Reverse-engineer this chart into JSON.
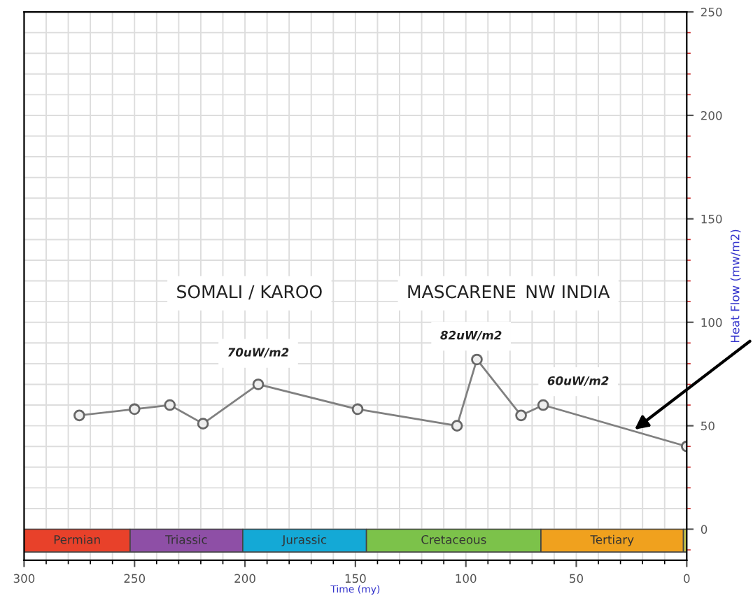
{
  "chart_data": {
    "type": "line",
    "xlabel": "Time (my)",
    "ylabel": "Heat Flow (mw/m2)",
    "x": [
      275,
      250,
      234,
      219,
      194,
      149,
      104,
      95,
      75,
      65,
      0
    ],
    "series": [
      {
        "color": "#808080",
        "values": [
          55,
          58,
          60,
          51,
          70,
          58,
          50,
          82,
          55,
          60,
          40
        ]
      }
    ],
    "marker": "circle",
    "line_style": "solid",
    "grid": true,
    "xlim": [
      300,
      0
    ],
    "xticks": [
      300,
      250,
      200,
      150,
      100,
      50,
      0
    ],
    "ylim": [
      -15,
      250
    ],
    "yticks": [
      0,
      50,
      100,
      150,
      200,
      250
    ],
    "bands": [
      {
        "axis": "x",
        "from": 300,
        "to": 252,
        "label": "Permian",
        "color": "#e8412a"
      },
      {
        "axis": "x",
        "from": 252,
        "to": 201,
        "label": "Triassic",
        "color": "#8e4fa6"
      },
      {
        "axis": "x",
        "from": 201,
        "to": 145,
        "label": "Jurassic",
        "color": "#14a9d6"
      },
      {
        "axis": "x",
        "from": 145,
        "to": 66,
        "label": "Cretaceous",
        "color": "#7cc24a"
      },
      {
        "axis": "x",
        "from": 66,
        "to": 1.5,
        "label": "Tertiary",
        "color": "#f0a11e"
      },
      {
        "axis": "x",
        "from": 1.5,
        "to": 0,
        "color": "#c8c850"
      }
    ],
    "annotations": [
      "SOMALI / KAROO",
      "MASCARENE",
      "NW INDIA",
      {
        "text": "70uW/m2",
        "x": 194,
        "y": 70
      },
      {
        "text": "82uW/m2",
        "x": 95,
        "y": 82
      },
      {
        "text": "60uW/m2",
        "x": 65,
        "y": 60
      }
    ]
  }
}
